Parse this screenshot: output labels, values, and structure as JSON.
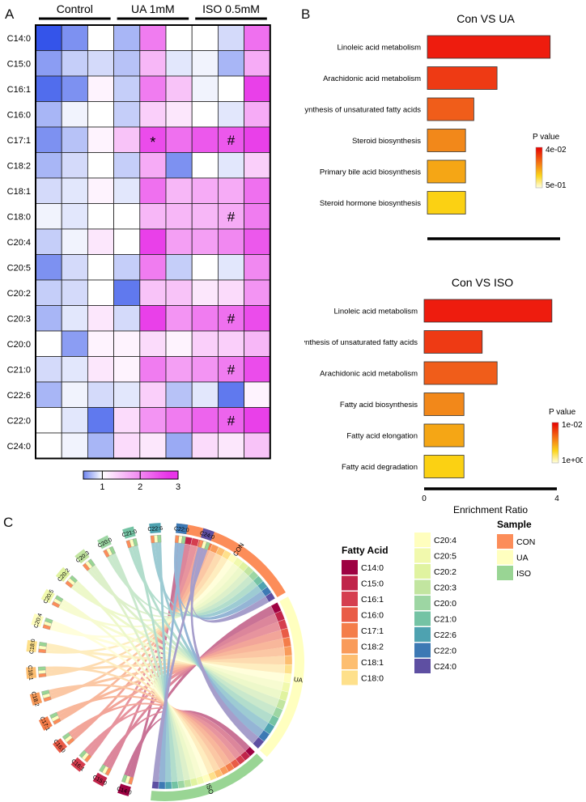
{
  "panels": {
    "a": "A",
    "b": "B",
    "c": "C"
  },
  "heatmap": {
    "groups": [
      "Control",
      "UA 1mM",
      "ISO 0.5mM"
    ],
    "rows": [
      "C14:0",
      "C15:0",
      "C16:1",
      "C16:0",
      "C17:1",
      "C18:2",
      "C18:1",
      "C18:0",
      "C20:4",
      "C20:5",
      "C20:2",
      "C20:3",
      "C20:0",
      "C21:0",
      "C22:6",
      "C22:0",
      "C24:0"
    ],
    "scale_ticks": [
      "1",
      "2",
      "3"
    ],
    "scale_range": [
      0.5,
      3.0
    ],
    "values": [
      [
        0.3,
        0.55,
        1.0,
        0.7,
        2.1,
        1.0,
        1.0,
        0.85,
        2.2
      ],
      [
        0.6,
        0.8,
        0.85,
        0.75,
        1.6,
        0.9,
        0.95,
        0.7,
        1.7
      ],
      [
        0.4,
        0.55,
        1.1,
        0.8,
        2.1,
        1.5,
        0.95,
        1.0,
        2.6
      ],
      [
        0.7,
        0.95,
        1.0,
        0.8,
        1.4,
        1.2,
        1.0,
        0.9,
        1.7
      ],
      [
        0.55,
        0.75,
        1.1,
        1.5,
        2.5,
        2.2,
        2.4,
        2.4,
        2.6
      ],
      [
        0.7,
        0.85,
        1.0,
        0.8,
        1.7,
        0.55,
        1.0,
        0.9,
        1.4
      ],
      [
        0.85,
        0.9,
        1.1,
        0.9,
        2.2,
        1.6,
        1.7,
        1.7,
        2.2
      ],
      [
        0.95,
        0.9,
        1.0,
        1.0,
        1.6,
        1.6,
        1.6,
        1.7,
        2.1
      ],
      [
        0.8,
        0.95,
        1.2,
        1.0,
        2.6,
        1.8,
        1.8,
        2.0,
        2.4
      ],
      [
        0.55,
        0.85,
        1.0,
        0.8,
        2.1,
        0.8,
        1.0,
        0.9,
        2.0
      ],
      [
        0.8,
        0.85,
        1.0,
        0.45,
        1.5,
        1.5,
        1.2,
        1.3,
        1.9
      ],
      [
        0.7,
        0.9,
        1.2,
        0.85,
        2.6,
        1.9,
        2.1,
        2.2,
        2.5
      ],
      [
        1.0,
        0.6,
        1.1,
        1.1,
        1.3,
        1.1,
        1.4,
        1.4,
        1.6
      ],
      [
        0.85,
        0.9,
        1.2,
        1.1,
        2.1,
        1.8,
        1.9,
        2.1,
        2.5
      ],
      [
        0.7,
        0.95,
        0.85,
        0.9,
        1.4,
        0.75,
        0.9,
        0.45,
        1.1
      ],
      [
        1.0,
        0.9,
        0.45,
        1.3,
        1.9,
        2.1,
        2.3,
        2.3,
        2.6
      ],
      [
        1.0,
        0.95,
        0.7,
        1.3,
        1.2,
        0.65,
        1.3,
        1.2,
        1.5
      ]
    ],
    "marks": [
      {
        "row": 4,
        "col": 4,
        "symbol": "*"
      },
      {
        "row": 4,
        "col": 7,
        "symbol": "#"
      },
      {
        "row": 7,
        "col": 7,
        "symbol": "#"
      },
      {
        "row": 11,
        "col": 7,
        "symbol": "#"
      },
      {
        "row": 13,
        "col": 7,
        "symbol": "#"
      },
      {
        "row": 15,
        "col": 7,
        "symbol": "#"
      }
    ]
  },
  "chart_data": [
    {
      "type": "bar",
      "title": "Con VS UA",
      "xlabel": "Enrichment Ratio",
      "xlim": [
        0,
        4
      ],
      "xticks": [
        "0",
        "4"
      ],
      "categories": [
        "Linoleic acid metabolism",
        "Arachidonic acid metabolism",
        "Biosynthesis of unsaturated fatty acids",
        "Steroid biosynthesis",
        "Primary bile acid biosynthesis",
        "Steroid hormone biosynthesis"
      ],
      "values": [
        3.7,
        2.1,
        1.4,
        1.15,
        1.15,
        1.15
      ],
      "colors": [
        "#ee1c0e",
        "#ee3a14",
        "#f05d1a",
        "#f2881a",
        "#f5a615",
        "#fbd113"
      ],
      "legend": {
        "title": "P value",
        "top": "4e-02",
        "bottom": "5e-01"
      }
    },
    {
      "type": "bar",
      "title": "Con VS ISO",
      "xlabel": "Enrichment Ratio",
      "xlim": [
        0,
        4
      ],
      "xticks": [
        "0",
        "4"
      ],
      "categories": [
        "Linoleic acid metabolism",
        "Biosynthesis of unsaturated fatty acids",
        "Arachidonic acid metabolism",
        "Fatty acid biosynthesis",
        "Fatty acid elongation",
        "Fatty acid degradation"
      ],
      "values": [
        3.85,
        1.75,
        2.2,
        1.2,
        1.2,
        1.2
      ],
      "colors": [
        "#ee1c0e",
        "#ee3a14",
        "#f05d1a",
        "#f2881a",
        "#f5a615",
        "#fbd113"
      ],
      "legend": {
        "title": "P value",
        "top": "1e-02",
        "bottom": "1e+00"
      }
    },
    {
      "type": "chord",
      "fatty_acids": [
        "C14:0",
        "C15:0",
        "C16:1",
        "C16:0",
        "C17:1",
        "C18:2",
        "C18:1",
        "C18:0",
        "C20:4",
        "C20:5",
        "C20:2",
        "C20:3",
        "C20:0",
        "C21:0",
        "C22:6",
        "C22:0",
        "C24:0"
      ],
      "fatty_acid_colors": [
        "#9e0142",
        "#c0244a",
        "#d53e4f",
        "#e95c47",
        "#f47d4a",
        "#f99b5a",
        "#fdbe70",
        "#fee08b",
        "#fffebe",
        "#f1f9ad",
        "#e0f3a0",
        "#c2e5a0",
        "#9dd6a3",
        "#74c3a4",
        "#4ea2b0",
        "#3d79b4",
        "#5e4fa2"
      ],
      "samples": [
        "CON",
        "UA",
        "ISO"
      ],
      "sample_colors": [
        "#fc8d59",
        "#ffffbf",
        "#99d594"
      ],
      "legend_fa_title": "Fatty Acid",
      "legend_sample_title": "Sample"
    }
  ]
}
